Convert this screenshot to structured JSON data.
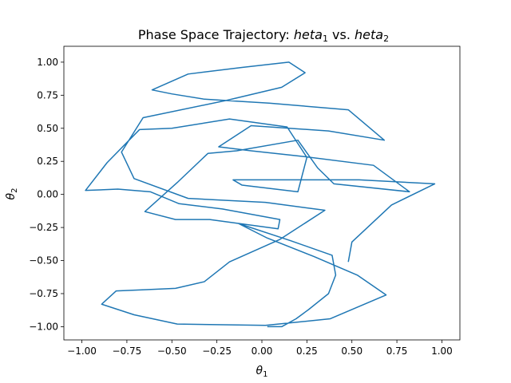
{
  "chart_data": {
    "type": "line",
    "title": "Phase Space Trajectory: $heta_1$ vs. $heta_2$",
    "title_parts": {
      "prefix": "Phase Space Trajectory: ",
      "var1": "heta",
      "sub1": "1",
      "mid": " vs. ",
      "var2": "heta",
      "sub2": "2"
    },
    "xlabel": {
      "base": "θ",
      "sub": "1"
    },
    "ylabel": {
      "base": "θ",
      "sub": "2"
    },
    "xlim": [
      -1.1,
      1.1
    ],
    "ylim": [
      -1.1,
      1.12
    ],
    "xticks": [
      -1.0,
      -0.75,
      -0.5,
      -0.25,
      0.0,
      0.25,
      0.5,
      0.75,
      1.0
    ],
    "xtick_labels": [
      "−1.00",
      "−0.75",
      "−0.50",
      "−0.25",
      "0.00",
      "0.25",
      "0.50",
      "0.75",
      "1.00"
    ],
    "yticks": [
      -1.0,
      -0.75,
      -0.5,
      -0.25,
      0.0,
      0.25,
      0.5,
      0.75,
      1.0
    ],
    "ytick_labels": [
      "−1.00",
      "−0.75",
      "−0.50",
      "−0.25",
      "0.00",
      "0.25",
      "0.50",
      "0.75",
      "1.00"
    ],
    "grid": false,
    "line_color": "#1f77b4",
    "series": [
      {
        "x": [
          0.48,
          0.5,
          0.72,
          0.96,
          0.54,
          0.06,
          -0.16,
          -0.11,
          0.2,
          0.25,
          0.14,
          -0.18,
          -0.5,
          -0.68,
          -0.86,
          -0.98,
          -0.8,
          -0.62,
          -0.46,
          -0.22,
          0.1,
          0.09,
          -0.29,
          -0.48,
          -0.65,
          -0.47,
          -0.3,
          -0.14,
          0.2,
          0.31,
          0.4,
          0.82,
          0.62,
          0.21,
          -0.06,
          -0.24,
          -0.06,
          0.37,
          0.68,
          0.48,
          0.04,
          -0.32,
          -0.5,
          -0.61,
          -0.41,
          -0.11,
          0.15,
          0.24,
          0.11,
          -0.2,
          -0.66,
          -0.78,
          -0.71,
          -0.41,
          0.02,
          0.35,
          0.1,
          -0.18,
          -0.32,
          -0.48,
          -0.64,
          -0.81,
          -0.89,
          -0.71,
          -0.47,
          0.02,
          0.38,
          0.69,
          0.53,
          0.29,
          0.03,
          -0.13,
          0.16,
          0.39,
          0.41,
          0.37,
          0.26,
          0.19,
          0.11,
          0.09,
          0.03
        ],
        "y": [
          -0.51,
          -0.36,
          -0.08,
          0.08,
          0.11,
          0.11,
          0.11,
          0.07,
          0.02,
          0.28,
          0.51,
          0.57,
          0.5,
          0.49,
          0.24,
          0.03,
          0.04,
          0.02,
          -0.07,
          -0.11,
          -0.19,
          -0.26,
          -0.19,
          -0.19,
          -0.13,
          0.09,
          0.31,
          0.33,
          0.41,
          0.2,
          0.08,
          0.02,
          0.22,
          0.29,
          0.33,
          0.36,
          0.52,
          0.48,
          0.41,
          0.64,
          0.69,
          0.72,
          0.76,
          0.79,
          0.91,
          0.96,
          1.0,
          0.92,
          0.81,
          0.71,
          0.58,
          0.32,
          0.12,
          -0.03,
          -0.06,
          -0.12,
          -0.34,
          -0.51,
          -0.66,
          -0.71,
          -0.72,
          -0.73,
          -0.83,
          -0.91,
          -0.98,
          -0.99,
          -0.94,
          -0.76,
          -0.61,
          -0.47,
          -0.33,
          -0.22,
          -0.35,
          -0.46,
          -0.61,
          -0.75,
          -0.87,
          -0.94,
          -1.0,
          -1.0,
          -1.0
        ]
      }
    ]
  }
}
